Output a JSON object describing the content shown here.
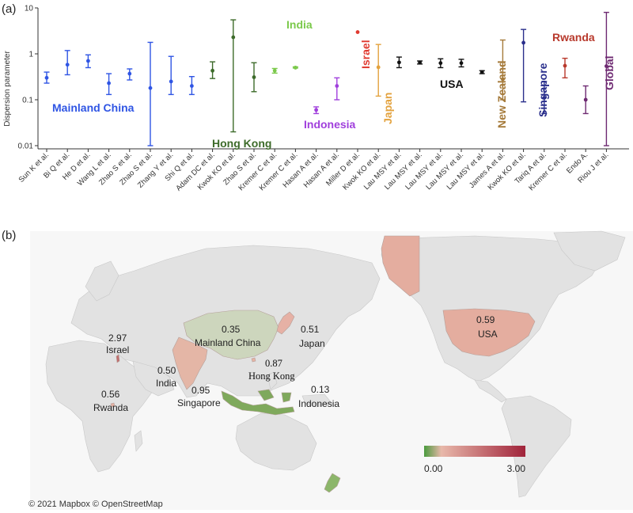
{
  "chart_data": [
    {
      "type": "scatter",
      "panel_label": "(a)",
      "ylabel": "Dispersion parameter",
      "yscale": "log",
      "ylim": [
        0.01,
        10
      ],
      "yticks": [
        {
          "v": 0.01,
          "label": "0.01"
        },
        {
          "v": 0.1,
          "label": "0.1"
        },
        {
          "v": 1,
          "label": "1"
        },
        {
          "v": 10,
          "label": "10"
        }
      ],
      "grid": false,
      "points": [
        {
          "study": "Sun K et al.",
          "region": "china",
          "k": 0.3,
          "lo": 0.23,
          "hi": 0.4
        },
        {
          "study": "Bi Q et al.",
          "region": "china",
          "k": 0.58,
          "lo": 0.35,
          "hi": 1.18
        },
        {
          "study": "He D et al.",
          "region": "china",
          "k": 0.7,
          "lo": 0.5,
          "hi": 0.95
        },
        {
          "study": "Wang L et al.",
          "region": "china",
          "k": 0.23,
          "lo": 0.13,
          "hi": 0.37
        },
        {
          "study": "Zhao S et al.",
          "region": "china",
          "k": 0.37,
          "lo": 0.27,
          "hi": 0.47
        },
        {
          "study": "Zhao S et al.",
          "region": "china",
          "k": 0.18,
          "lo": 0.01,
          "hi": 1.78
        },
        {
          "study": "Zhang Y et al.",
          "region": "china",
          "k": 0.25,
          "lo": 0.13,
          "hi": 0.88
        },
        {
          "study": "Shi Q et al.",
          "region": "china",
          "k": 0.2,
          "lo": 0.13,
          "hi": 0.32
        },
        {
          "study": "Adam DC et al.",
          "region": "hongkong",
          "k": 0.43,
          "lo": 0.29,
          "hi": 0.67
        },
        {
          "study": "Kwok KO et al.",
          "region": "hongkong",
          "k": 2.3,
          "lo": 0.02,
          "hi": 5.5
        },
        {
          "study": "Zhao S et al.",
          "region": "hongkong",
          "k": 0.31,
          "lo": 0.15,
          "hi": 0.64
        },
        {
          "study": "Kremer C et al.",
          "region": "india",
          "k": 0.43,
          "lo": 0.38,
          "hi": 0.48
        },
        {
          "study": "Kremer C et al.",
          "region": "india",
          "k": 0.5,
          "lo": 0.49,
          "hi": 0.52
        },
        {
          "study": "Hasan A et al.",
          "region": "indonesia",
          "k": 0.06,
          "lo": 0.05,
          "hi": 0.07
        },
        {
          "study": "Hasan A et al.",
          "region": "indonesia",
          "k": 0.2,
          "lo": 0.1,
          "hi": 0.3
        },
        {
          "study": "Miller D et al.",
          "region": "israel",
          "k": 2.97,
          "lo": 2.97,
          "hi": 2.97
        },
        {
          "study": "Kwok KO et al.",
          "region": "japan",
          "k": 0.51,
          "lo": 0.12,
          "hi": 1.6
        },
        {
          "study": "Lau MSY et al.",
          "region": "usa",
          "k": 0.65,
          "lo": 0.5,
          "hi": 0.85
        },
        {
          "study": "Lau MSY et al.",
          "region": "usa",
          "k": 0.65,
          "lo": 0.6,
          "hi": 0.7
        },
        {
          "study": "Lau MSY et al.",
          "region": "usa",
          "k": 0.63,
          "lo": 0.5,
          "hi": 0.78
        },
        {
          "study": "Lau MSY et al.",
          "region": "usa",
          "k": 0.63,
          "lo": 0.52,
          "hi": 0.76
        },
        {
          "study": "Lau MSY et al.",
          "region": "usa",
          "k": 0.4,
          "lo": 0.37,
          "hi": 0.43
        },
        {
          "study": "James A et al.",
          "region": "newzealand",
          "k": 0.28,
          "lo": 0.1,
          "hi": 2.0
        },
        {
          "study": "Kwok KO et al.",
          "region": "singapore",
          "k": 1.75,
          "lo": 0.09,
          "hi": 3.4
        },
        {
          "study": "Tariq A et al.",
          "region": "singapore",
          "k": 0.11,
          "lo": 0.05,
          "hi": 0.25
        },
        {
          "study": "Kremer C et al.",
          "region": "rwanda",
          "k": 0.55,
          "lo": 0.3,
          "hi": 0.8
        },
        {
          "study": "Endo A.",
          "region": "global",
          "k": 0.1,
          "lo": 0.05,
          "hi": 0.2
        },
        {
          "study": "Riou J et al.",
          "region": "global",
          "k": 0.54,
          "lo": 0.01,
          "hi": 8.0
        }
      ],
      "groups": [
        {
          "id": "china",
          "label": "Mainland China",
          "color": "#2f55e4"
        },
        {
          "id": "hongkong",
          "label": "Hong Kong",
          "color": "#3d6b2a"
        },
        {
          "id": "india",
          "label": "India",
          "color": "#7bc94b"
        },
        {
          "id": "indonesia",
          "label": "Indonesia",
          "color": "#a03fdc"
        },
        {
          "id": "israel",
          "label": "Israel",
          "color": "#e03a30"
        },
        {
          "id": "japan",
          "label": "Japan",
          "color": "#e3a23e"
        },
        {
          "id": "usa",
          "label": "USA",
          "color": "#111111"
        },
        {
          "id": "newzealand",
          "label": "New Zealand",
          "color": "#a57a3a"
        },
        {
          "id": "singapore",
          "label": "Singapore",
          "color": "#2a2f8c"
        },
        {
          "id": "rwanda",
          "label": "Rwanda",
          "color": "#b8392c"
        },
        {
          "id": "global",
          "label": "Global",
          "color": "#6e2a72"
        }
      ]
    },
    {
      "type": "map",
      "panel_label": "(b)",
      "regions": [
        {
          "id": "israel",
          "name": "Israel",
          "value": "2.97",
          "color": "#c06e6e"
        },
        {
          "id": "china",
          "name": "Mainland China",
          "value": "0.35",
          "color": "#cdd6bd"
        },
        {
          "id": "japan",
          "name": "Japan",
          "value": "0.51",
          "color": "#e6b1a5"
        },
        {
          "id": "hongkong",
          "name": "Hong Kong",
          "value": "0.87",
          "color": "#e7b3a4"
        },
        {
          "id": "india",
          "name": "India",
          "value": "0.50",
          "color": "#e4b6a6"
        },
        {
          "id": "rwanda",
          "name": "Rwanda",
          "value": "0.56",
          "color": "#e5b2a4"
        },
        {
          "id": "singapore",
          "name": "Singapore",
          "value": "0.95",
          "color": "#e1a397"
        },
        {
          "id": "indonesia",
          "name": "Indonesia",
          "value": "0.13",
          "color": "#7fa95c"
        },
        {
          "id": "usa",
          "name": "USA",
          "value": "0.59",
          "color": "#e4ad9f"
        },
        {
          "id": "alaska",
          "name": "",
          "value": "",
          "color": "#e4ad9f"
        },
        {
          "id": "newzealand",
          "name": "",
          "value": "",
          "color": "#8cb66a"
        }
      ],
      "legend": {
        "min_label": "0.00",
        "max_label": "3.00",
        "min": 0,
        "max": 3,
        "color_low": "#4a9a3d",
        "color_mid": "#e8b8aa",
        "color_high": "#a0233a"
      },
      "credit": "© 2021 Mapbox © OpenStreetMap",
      "colors": {
        "land": "#e2e2e2",
        "water": "#f7f7f7",
        "border": "#c8c8c8"
      }
    }
  ]
}
